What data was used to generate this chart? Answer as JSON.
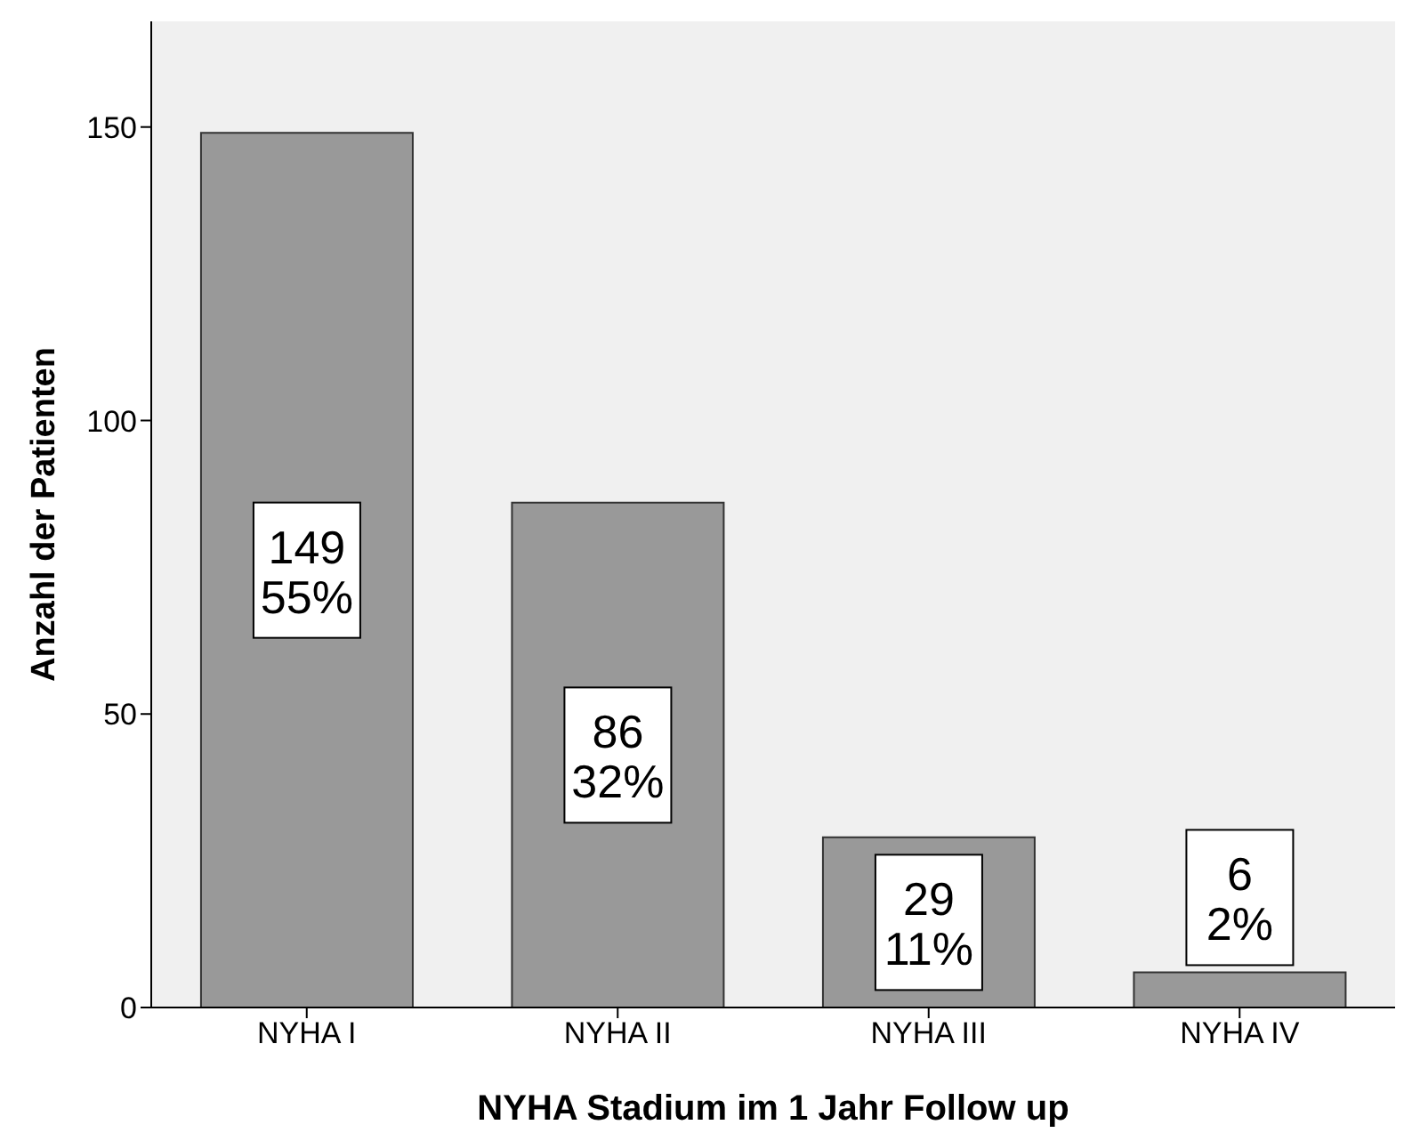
{
  "chart_data": {
    "type": "bar",
    "xlabel": "NYHA Stadium im 1 Jahr Follow up",
    "ylabel": "Anzahl der Patienten",
    "categories": [
      "NYHA I",
      "NYHA II",
      "NYHA III",
      "NYHA IV"
    ],
    "values": [
      149,
      86,
      29,
      6
    ],
    "value_labels": [
      "149\n55%",
      "86\n32%",
      "29\n11%",
      "6\n2%"
    ],
    "color": "#999999",
    "ylim": [
      0,
      168
    ],
    "yticks": [
      0,
      50,
      100,
      150
    ],
    "grid": false
  }
}
